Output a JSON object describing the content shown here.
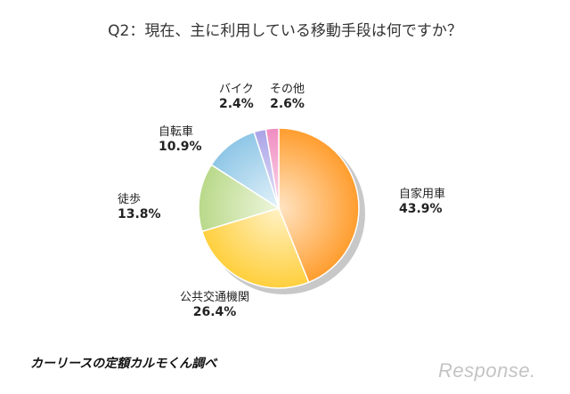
{
  "title": "Q2：現在、主に利用している移動手段は何ですか？",
  "source": "カーリースの定額カルモくん調べ",
  "logo_text": "Response.",
  "chart_data": {
    "type": "pie",
    "title": "Q2：現在、主に利用している移動手段は何ですか？",
    "slices": [
      {
        "label": "自家用車",
        "value": 43.9,
        "display": "43.9%",
        "color_a": "#ff9d2e",
        "color_b": "#ffe4c4"
      },
      {
        "label": "公共交通機関",
        "value": 26.4,
        "display": "26.4%",
        "color_a": "#ffcf3d",
        "color_b": "#fff2c6"
      },
      {
        "label": "徒歩",
        "value": 13.8,
        "display": "13.8%",
        "color_a": "#b9d98a",
        "color_b": "#eef6dd"
      },
      {
        "label": "自転車",
        "value": 10.9,
        "display": "10.9%",
        "color_a": "#8ec6e6",
        "color_b": "#e3f2fa"
      },
      {
        "label": "バイク",
        "value": 2.4,
        "display": "2.4%",
        "color_a": "#a9a3e6",
        "color_b": "#e6e3fa"
      },
      {
        "label": "その他",
        "value": 2.6,
        "display": "2.6%",
        "color_a": "#f08cc0",
        "color_b": "#fbdcec"
      }
    ]
  }
}
